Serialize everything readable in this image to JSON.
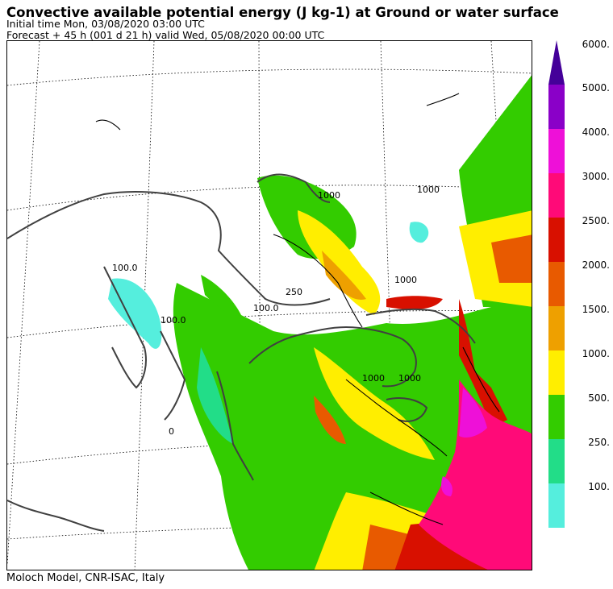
{
  "header": {
    "title": "Convective available potential energy (J kg-1) at Ground or water surface",
    "initial_time": "Initial time  Mon, 03/08/2020  03:00 UTC",
    "forecast": "Forecast  +  45 h  (001 d 21 h)  valid Wed, 05/08/2020 00:00 UTC"
  },
  "footer": "Moloch Model, CNR-ISAC, Italy",
  "legend": {
    "levels": [
      "6000.",
      "5000.",
      "4000.",
      "3000.",
      "2500.",
      "2000.",
      "1500.",
      "1000.",
      "500.",
      "250.",
      "100."
    ],
    "colors": [
      "#8a00c8",
      "#ee10d8",
      "#ff0a78",
      "#d81000",
      "#e85a00",
      "#eea000",
      "#ffee00",
      "#33cc00",
      "#22dd88",
      "#55eedd"
    ],
    "arrow_color": "#440099"
  },
  "map": {
    "contour_labels": [
      "1000",
      "1000",
      "1000",
      "100.0",
      "100.0",
      "100.0",
      "250",
      "1000",
      "1000",
      "0"
    ]
  }
}
